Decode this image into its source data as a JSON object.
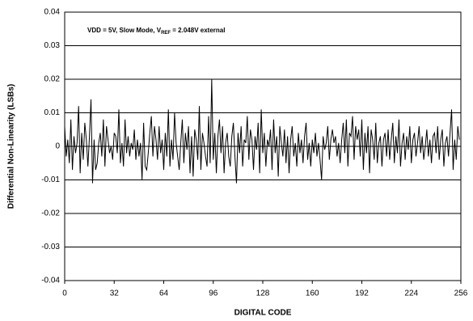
{
  "chart_data": {
    "type": "line",
    "annotation": {
      "parts": [
        "VDD = 5V, Slow Mode, V",
        "REF",
        " = 2.048V external"
      ]
    },
    "xlabel": "DIGITAL CODE",
    "ylabel": "Differential Non-Linearity (LSBs)",
    "xlim": [
      0,
      256
    ],
    "xticks": [
      0,
      32,
      64,
      96,
      128,
      160,
      192,
      224,
      256
    ],
    "ylim": [
      -0.04,
      0.04
    ],
    "yticks": [
      0.04,
      0.03,
      0.02,
      0.01,
      0,
      -0.01,
      -0.02,
      -0.03,
      -0.04
    ],
    "grid": true,
    "series": [
      {
        "color": "#000000",
        "values": [
          0.006,
          -0.003,
          0.002,
          -0.005,
          0.008,
          -0.007,
          0.003,
          -0.002,
          0.001,
          0.012,
          -0.008,
          0.004,
          -0.004,
          0.007,
          0.002,
          -0.006,
          0.003,
          0.014,
          -0.011,
          0.002,
          -0.007,
          -0.005,
          0.001,
          0.004,
          -0.003,
          0.008,
          -0.006,
          0.006,
          0.002,
          -0.002,
          0.0,
          -0.004,
          0.004,
          0.003,
          -0.002,
          0.011,
          -0.005,
          0.001,
          -0.006,
          0.008,
          -0.002,
          0.003,
          -0.003,
          0.001,
          -0.001,
          0.005,
          -0.004,
          0.002,
          -0.003,
          0.001,
          -0.01,
          0.007,
          -0.006,
          -0.007,
          -0.002,
          0.004,
          0.009,
          -0.003,
          0.006,
          0.002,
          -0.004,
          0.006,
          -0.002,
          0.002,
          -0.007,
          0.004,
          -0.003,
          0.011,
          -0.006,
          0.002,
          -0.004,
          0.01,
          0.001,
          -0.003,
          -0.007,
          0.001,
          0.008,
          -0.005,
          0.004,
          -0.001,
          0.006,
          -0.008,
          0.003,
          -0.009,
          0.005,
          0.002,
          -0.004,
          0.012,
          -0.007,
          0.004,
          0.001,
          -0.003,
          -0.006,
          0.009,
          -0.005,
          0.02,
          -0.004,
          0.004,
          -0.008,
          0.003,
          0.008,
          -0.002,
          0.006,
          -0.008,
          0.001,
          0.004,
          -0.003,
          -0.006,
          0.003,
          0.007,
          -0.003,
          -0.011,
          0.004,
          -0.002,
          0.006,
          -0.006,
          0.002,
          0.001,
          0.009,
          -0.004,
          0.005,
          0.002,
          -0.007,
          0.003,
          -0.001,
          0.007,
          -0.008,
          0.011,
          -0.002,
          0.004,
          -0.006,
          0.002,
          0.0,
          0.005,
          -0.007,
          0.008,
          -0.002,
          0.003,
          -0.009,
          0.006,
          0.001,
          -0.003,
          0.005,
          -0.005,
          0.003,
          -0.008,
          0.002,
          0.006,
          -0.003,
          0.001,
          -0.006,
          0.004,
          -0.002,
          0.002,
          -0.005,
          0.003,
          0.007,
          -0.004,
          0.001,
          -0.006,
          0.002,
          -0.002,
          0.004,
          -0.003,
          0.001,
          -0.004,
          -0.01,
          0.003,
          -0.001,
          0.001,
          0.006,
          -0.004,
          0.002,
          0.005,
          0.001,
          0.003,
          -0.003,
          0.001,
          -0.005,
          0.002,
          0.007,
          -0.002,
          0.008,
          -0.006,
          0.004,
          0.003,
          0.009,
          -0.004,
          0.006,
          0.002,
          0.005,
          -0.003,
          0.008,
          -0.007,
          0.004,
          -0.002,
          0.006,
          -0.008,
          0.005,
          0.002,
          -0.004,
          0.007,
          -0.005,
          0.001,
          0.003,
          -0.006,
          0.002,
          0.004,
          -0.003,
          0.005,
          -0.004,
          0.002,
          0.007,
          -0.005,
          0.003,
          -0.002,
          0.008,
          -0.006,
          0.001,
          0.004,
          -0.004,
          0.003,
          -0.001,
          0.006,
          -0.005,
          0.002,
          0.004,
          -0.003,
          0.001,
          0.006,
          -0.002,
          0.003,
          -0.004,
          0.0,
          0.005,
          -0.003,
          0.002,
          -0.005,
          0.003,
          0.004,
          -0.002,
          0.006,
          -0.004,
          0.002,
          0.005,
          -0.006,
          0.001,
          0.003,
          -0.003,
          0.004,
          0.011,
          -0.007,
          0.002,
          -0.004,
          0.006,
          0.002
        ]
      }
    ]
  }
}
